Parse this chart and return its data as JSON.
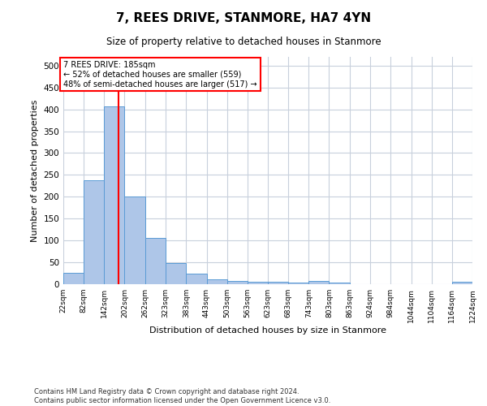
{
  "title": "7, REES DRIVE, STANMORE, HA7 4YN",
  "subtitle": "Size of property relative to detached houses in Stanmore",
  "xlabel": "Distribution of detached houses by size in Stanmore",
  "ylabel": "Number of detached properties",
  "bar_color": "#aec6e8",
  "bar_edge_color": "#5b9bd5",
  "grid_color": "#c8d0dc",
  "bin_edges": [
    22,
    82,
    142,
    202,
    262,
    323,
    383,
    443,
    503,
    563,
    623,
    683,
    743,
    803,
    863,
    924,
    984,
    1044,
    1104,
    1164,
    1224
  ],
  "bin_labels": [
    "22sqm",
    "82sqm",
    "142sqm",
    "202sqm",
    "262sqm",
    "323sqm",
    "383sqm",
    "443sqm",
    "503sqm",
    "563sqm",
    "623sqm",
    "683sqm",
    "743sqm",
    "803sqm",
    "863sqm",
    "924sqm",
    "984sqm",
    "1044sqm",
    "1104sqm",
    "1164sqm",
    "1224sqm"
  ],
  "bar_heights": [
    26,
    237,
    406,
    200,
    105,
    49,
    24,
    12,
    8,
    6,
    5,
    4,
    7,
    4,
    0,
    0,
    0,
    0,
    0,
    6
  ],
  "ylim": [
    0,
    520
  ],
  "yticks": [
    0,
    50,
    100,
    150,
    200,
    250,
    300,
    350,
    400,
    450,
    500
  ],
  "property_line_x": 185,
  "annotation_text": "7 REES DRIVE: 185sqm\n← 52% of detached houses are smaller (559)\n48% of semi-detached houses are larger (517) →",
  "annotation_box_color": "white",
  "annotation_box_edge_color": "red",
  "vline_color": "red",
  "footnote1": "Contains HM Land Registry data © Crown copyright and database right 2024.",
  "footnote2": "Contains public sector information licensed under the Open Government Licence v3.0.",
  "background_color": "white",
  "fig_width": 6.0,
  "fig_height": 5.0
}
